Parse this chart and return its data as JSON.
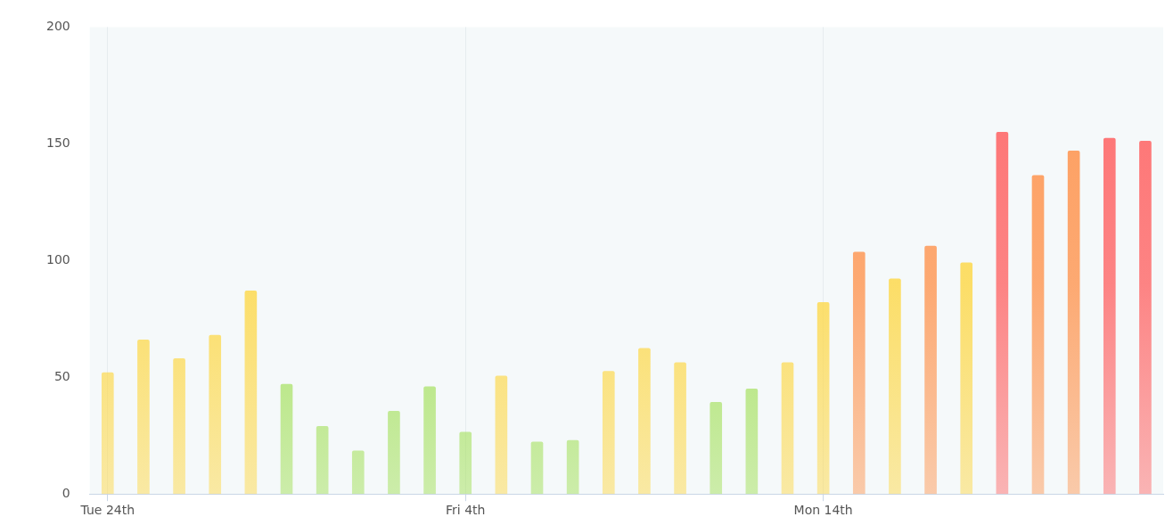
{
  "chart_data": {
    "type": "bar",
    "categories": [
      "Tue 24th",
      null,
      null,
      null,
      null,
      null,
      null,
      null,
      null,
      null,
      "Fri 4th",
      null,
      null,
      null,
      null,
      null,
      null,
      null,
      null,
      null,
      "Mon 14th",
      null,
      null,
      null,
      null,
      null,
      null,
      null,
      null,
      null
    ],
    "values": [
      52,
      66,
      58,
      68,
      87,
      47,
      29,
      18.5,
      35.5,
      46,
      26.5,
      50.5,
      22.3,
      23,
      52.5,
      62.4,
      56.3,
      39.3,
      45,
      56.3,
      82,
      103.6,
      92.2,
      106.2,
      99,
      155,
      136.5,
      147,
      152.4,
      151.2
    ],
    "colors": [
      "#fdd94e",
      "#fdd94e",
      "#fdd94e",
      "#fdd94e",
      "#fdd94e",
      "#a3e05a",
      "#a3e05a",
      "#a3e05a",
      "#a3e05a",
      "#a3e05a",
      "#a3e05a",
      "#fdd94e",
      "#a3e05a",
      "#a3e05a",
      "#fdd94e",
      "#fdd94e",
      "#fdd94e",
      "#a3e05a",
      "#a3e05a",
      "#fdd94e",
      "#fdd94e",
      "#fe9b5a",
      "#fdd94e",
      "#fe9b5a",
      "#fdd94e",
      "#fe6f6f",
      "#fe9b5a",
      "#fe9b5a",
      "#fe6f6f",
      "#fe6f6f"
    ],
    "ylim": [
      0,
      200
    ],
    "yticks": [
      0,
      50,
      100,
      150,
      200
    ],
    "grid": "x"
  }
}
